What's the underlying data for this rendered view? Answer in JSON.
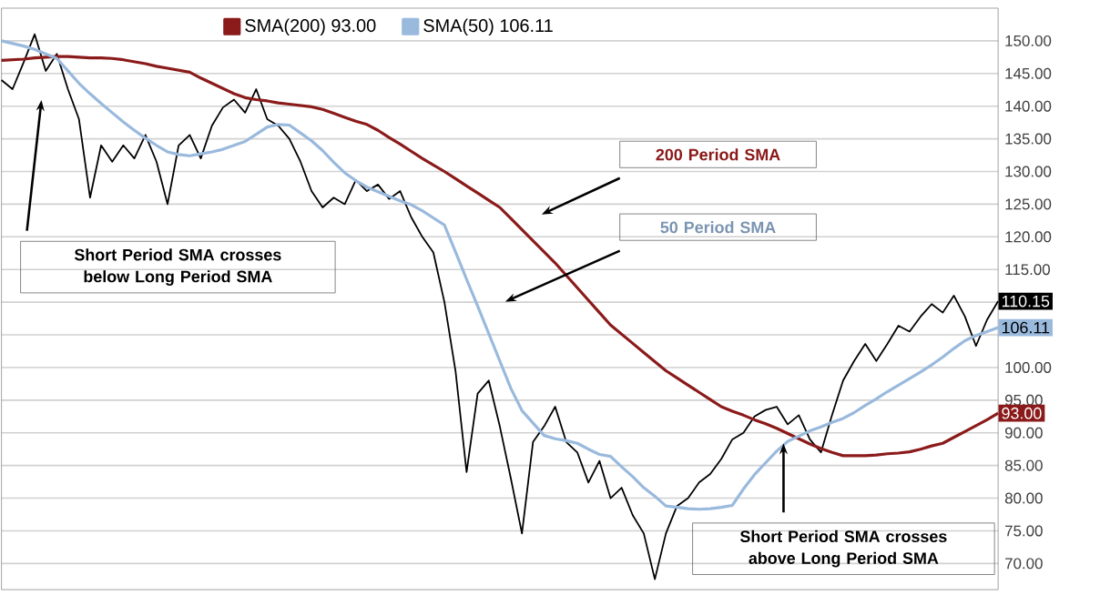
{
  "chart_data": {
    "type": "line",
    "categories": [
      null,
      null,
      null,
      null,
      null,
      null,
      null,
      null,
      null,
      null,
      null,
      null,
      null,
      null,
      null,
      null,
      null,
      null,
      null,
      null,
      null,
      null,
      null,
      null,
      null,
      null,
      null,
      null,
      null,
      null,
      null,
      null,
      null,
      null,
      null,
      null,
      null,
      null,
      null,
      null,
      null,
      null,
      null,
      null,
      null,
      null,
      null,
      null,
      null,
      null,
      null,
      null,
      null,
      null,
      null,
      null,
      null,
      null,
      null,
      null,
      null,
      null,
      null,
      null,
      null,
      null,
      null,
      null,
      null,
      null,
      null,
      null,
      null,
      null,
      null,
      null,
      null,
      null,
      null,
      null,
      null,
      null,
      null,
      null,
      null,
      null,
      null,
      null,
      null,
      null,
      null
    ],
    "series": [
      {
        "color": "#000000",
        "values": [
          144,
          142.6,
          146.7,
          151,
          145.4,
          148,
          142.6,
          138,
          126,
          134,
          131.5,
          134,
          132,
          135.6,
          131.5,
          125,
          134,
          135.6,
          132,
          137,
          139.8,
          141,
          139,
          142.6,
          138,
          137,
          135,
          131.5,
          127,
          124.5,
          126,
          125,
          128.7,
          127,
          128,
          125.8,
          127,
          123,
          120,
          117.6,
          110,
          99.5,
          84,
          96,
          98,
          91,
          83,
          74.6,
          88.6,
          91,
          94,
          88.6,
          87,
          82.4,
          85.7,
          80,
          81.6,
          77.4,
          74.6,
          67.6,
          74.6,
          78.8,
          80,
          82.4,
          83.7,
          86,
          89,
          90,
          92.5,
          93.5,
          94,
          91.3,
          92.7,
          89,
          87,
          92.7,
          98,
          101,
          103.6,
          101,
          103.6,
          106.4,
          105.5,
          107.8,
          109.7,
          108.4,
          111,
          107.8,
          103.3,
          107.3,
          110.15
        ],
        "value_labels": [
          null,
          null,
          null,
          null,
          null,
          null,
          null,
          null,
          null,
          null,
          null,
          null,
          null,
          null,
          null,
          null,
          null,
          null,
          null,
          null,
          null,
          null,
          null,
          null,
          null,
          null,
          null,
          null,
          null,
          null,
          null,
          null,
          null,
          null,
          null,
          null,
          null,
          null,
          null,
          null,
          null,
          null,
          null,
          null,
          null,
          null,
          null,
          null,
          null,
          null,
          null,
          null,
          null,
          null,
          null,
          null,
          null,
          null,
          null,
          null,
          null,
          null,
          null,
          null,
          null,
          null,
          null,
          null,
          null,
          null,
          null,
          null,
          null,
          null,
          null,
          null,
          null,
          null,
          null,
          null,
          null,
          null,
          null,
          null,
          null,
          null,
          null,
          null,
          null,
          null,
          "110.15"
        ]
      },
      {
        "name": "SMA(200) 93.00",
        "color": "#8b1a1a",
        "values": [
          147.0,
          147.1,
          147.2,
          147.4,
          147.5,
          147.6,
          147.6,
          147.5,
          147.4,
          147.4,
          147.3,
          147.1,
          146.8,
          146.5,
          146.1,
          145.8,
          145.5,
          145.2,
          144.3,
          143.5,
          142.7,
          141.9,
          141.3,
          141.0,
          140.8,
          140.5,
          140.3,
          140.1,
          139.9,
          139.5,
          138.9,
          138.3,
          137.7,
          137.2,
          136.3,
          135.2,
          134.2,
          133.1,
          132.0,
          131.0,
          130.0,
          128.9,
          127.8,
          126.7,
          125.6,
          124.5,
          122.8,
          121.1,
          119.4,
          117.7,
          116.0,
          114.1,
          112.2,
          110.3,
          108.4,
          106.5,
          105.1,
          103.7,
          102.3,
          100.9,
          99.5,
          98.4,
          97.3,
          96.2,
          95.1,
          94.0,
          93.3,
          92.7,
          92.0,
          91.4,
          90.7,
          89.9,
          89.1,
          88.3,
          87.6,
          87.0,
          86.5,
          86.5,
          86.5,
          86.6,
          86.8,
          86.9,
          87.1,
          87.5,
          88.0,
          88.4,
          89.3,
          90.2,
          91.1,
          92.0,
          93.0
        ],
        "value_labels": [
          null,
          null,
          null,
          null,
          null,
          null,
          null,
          null,
          null,
          null,
          null,
          null,
          null,
          null,
          null,
          null,
          null,
          null,
          null,
          null,
          null,
          null,
          null,
          null,
          null,
          null,
          null,
          null,
          null,
          null,
          null,
          null,
          null,
          null,
          null,
          null,
          null,
          null,
          null,
          null,
          null,
          null,
          null,
          null,
          null,
          null,
          null,
          null,
          null,
          null,
          null,
          null,
          null,
          null,
          null,
          null,
          null,
          null,
          null,
          null,
          null,
          null,
          null,
          null,
          null,
          null,
          null,
          null,
          null,
          null,
          null,
          null,
          null,
          null,
          null,
          null,
          null,
          null,
          null,
          null,
          null,
          null,
          null,
          null,
          null,
          null,
          null,
          null,
          null,
          null,
          "93.00"
        ]
      },
      {
        "name": "SMA(50) 106.11",
        "color": "#99b9dd",
        "values": [
          150.0,
          149.6,
          149.2,
          148.7,
          148.0,
          147.3,
          145.4,
          143.5,
          141.9,
          140.4,
          139.0,
          137.6,
          136.3,
          135.1,
          134.0,
          133.0,
          132.6,
          132.4,
          132.7,
          133.0,
          133.4,
          134.0,
          134.6,
          135.7,
          136.8,
          137.2,
          137.1,
          135.9,
          134.7,
          133.2,
          131.4,
          129.8,
          128.6,
          127.6,
          126.9,
          126.2,
          125.5,
          124.9,
          124.0,
          122.9,
          121.8,
          117.7,
          113.5,
          109.4,
          105.2,
          101.0,
          96.8,
          93.4,
          91.5,
          89.6,
          89.1,
          88.8,
          88.4,
          87.5,
          86.7,
          86.4,
          84.8,
          83.3,
          81.6,
          80.3,
          78.8,
          78.6,
          78.4,
          78.3,
          78.4,
          78.6,
          78.9,
          81.4,
          83.6,
          85.4,
          87.2,
          88.7,
          89.5,
          90.3,
          90.9,
          91.6,
          92.2,
          93.1,
          94.2,
          95.2,
          96.3,
          97.3,
          98.3,
          99.3,
          100.4,
          101.6,
          102.9,
          104.1,
          104.9,
          105.5,
          106.11
        ],
        "value_labels": [
          null,
          null,
          null,
          null,
          null,
          null,
          null,
          null,
          null,
          null,
          null,
          null,
          null,
          null,
          null,
          null,
          null,
          null,
          null,
          null,
          null,
          null,
          null,
          null,
          null,
          null,
          null,
          null,
          null,
          null,
          null,
          null,
          null,
          null,
          null,
          null,
          null,
          null,
          null,
          null,
          null,
          null,
          null,
          null,
          null,
          null,
          null,
          null,
          null,
          null,
          null,
          null,
          null,
          null,
          null,
          null,
          null,
          null,
          null,
          null,
          null,
          null,
          null,
          null,
          null,
          null,
          null,
          null,
          null,
          null,
          null,
          null,
          null,
          null,
          null,
          null,
          null,
          null,
          null,
          null,
          null,
          null,
          null,
          null,
          null,
          null,
          null,
          null,
          null,
          null,
          "106.11"
        ]
      }
    ],
    "ylim": [
      66,
      155
    ],
    "yticks": [
      {
        "value": 70,
        "label": "70.00"
      },
      {
        "value": 75,
        "label": "75.00"
      },
      {
        "value": 80,
        "label": "80.00"
      },
      {
        "value": 85,
        "label": "85.00"
      },
      {
        "value": 90,
        "label": "90.00"
      },
      {
        "value": 95,
        "label": "95.00"
      },
      {
        "value": 100,
        "label": "100.00"
      },
      {
        "value": 105,
        "label": null
      },
      {
        "value": 110,
        "label": null
      },
      {
        "value": 115,
        "label": "115.00"
      },
      {
        "value": 120,
        "label": "120.00"
      },
      {
        "value": 125,
        "label": "125.00"
      },
      {
        "value": 130,
        "label": "130.00"
      },
      {
        "value": 135,
        "label": "135.00"
      },
      {
        "value": 140,
        "label": "140.00"
      },
      {
        "value": 145,
        "label": "145.00"
      },
      {
        "value": 150,
        "label": "150.00"
      }
    ],
    "tick_labels": "y",
    "grid": "y",
    "legend": "top",
    "marker": "none",
    "annotations": [
      "200 Period SMA",
      "50 Period SMA",
      "Short Period SMA crosses below Long Period SMA",
      "Short Period SMA crosses above Long Period SMA"
    ]
  }
}
